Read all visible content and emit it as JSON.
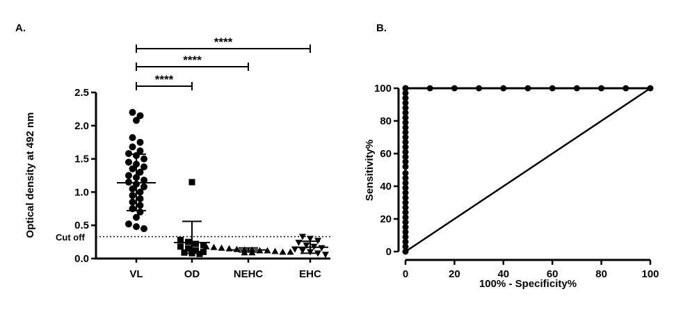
{
  "chart_data": [
    {
      "panel_label": "A.",
      "type": "scatter",
      "ylabel": "Optical density at 492 nm",
      "ylim": [
        0,
        2.5
      ],
      "yticks": [
        "0.0",
        "0.5",
        "1.0",
        "1.5",
        "2.0",
        "2.5"
      ],
      "categories": [
        "VL",
        "OD",
        "NEHC",
        "EHC"
      ],
      "cutoff": {
        "label": "Cut off",
        "value": 0.33
      },
      "significance": [
        {
          "from": "VL",
          "to": "OD",
          "label": "****"
        },
        {
          "from": "VL",
          "to": "NEHC",
          "label": "****"
        },
        {
          "from": "VL",
          "to": "EHC",
          "label": "****"
        }
      ],
      "groups": [
        {
          "name": "VL",
          "marker": "circle",
          "mean": 1.14,
          "sd_upper": 1.57,
          "sd_lower": 0.72,
          "values": [
            2.2,
            2.15,
            2.08,
            1.82,
            1.75,
            1.68,
            1.62,
            1.58,
            1.55,
            1.5,
            1.45,
            1.42,
            1.38,
            1.35,
            1.3,
            1.25,
            1.22,
            1.18,
            1.15,
            1.12,
            1.08,
            1.05,
            1.0,
            0.95,
            0.9,
            0.85,
            0.8,
            0.75,
            0.7,
            0.62,
            0.52,
            0.48,
            0.45
          ]
        },
        {
          "name": "OD",
          "marker": "square",
          "mean": 0.24,
          "sd_upper": 0.56,
          "sd_lower": 0.08,
          "values": [
            1.15,
            0.28,
            0.25,
            0.22,
            0.2,
            0.18,
            0.15,
            0.12,
            0.1,
            0.09,
            0.08,
            0.07
          ]
        },
        {
          "name": "NEHC",
          "marker": "triangle-up",
          "mean": 0.13,
          "sd_upper": 0.16,
          "sd_lower": 0.1,
          "values": [
            0.18,
            0.17,
            0.16,
            0.15,
            0.14,
            0.13,
            0.13,
            0.12,
            0.12,
            0.11,
            0.1,
            0.1,
            0.09,
            0.09
          ]
        },
        {
          "name": "EHC",
          "marker": "triangle-down",
          "mean": 0.17,
          "sd_upper": 0.26,
          "sd_lower": 0.08,
          "values": [
            0.33,
            0.3,
            0.27,
            0.24,
            0.2,
            0.18,
            0.16,
            0.14,
            0.12,
            0.1,
            0.08,
            0.06
          ]
        }
      ]
    },
    {
      "panel_label": "B.",
      "type": "line",
      "xlabel": "100% - Specificity%",
      "ylabel": "Sensitivity%",
      "xlim": [
        0,
        100
      ],
      "ylim": [
        0,
        100
      ],
      "xticks": [
        "0",
        "20",
        "40",
        "60",
        "80",
        "100"
      ],
      "yticks": [
        "0",
        "20",
        "40",
        "60",
        "80",
        "100"
      ],
      "series": [
        {
          "type": "roc",
          "x": [
            0,
            0,
            0,
            0,
            0,
            0,
            0,
            0,
            0,
            0,
            0,
            0,
            0,
            0,
            0,
            0,
            0,
            0,
            0,
            0,
            0,
            0,
            0,
            0,
            0,
            0,
            0,
            0,
            0,
            0,
            0,
            0,
            0,
            0,
            0,
            10,
            20,
            30,
            40,
            50,
            60,
            70,
            80,
            90,
            100
          ],
          "y": [
            0,
            3,
            6,
            9,
            12,
            15,
            18,
            21,
            24,
            27,
            30,
            33,
            36,
            39,
            42,
            45,
            48,
            52,
            55,
            58,
            61,
            64,
            67,
            70,
            73,
            76,
            79,
            82,
            85,
            88,
            91,
            94,
            97,
            100,
            100,
            100,
            100,
            100,
            100,
            100,
            100,
            100,
            100,
            100,
            100
          ]
        },
        {
          "type": "reference",
          "x": [
            0,
            100
          ],
          "y": [
            0,
            100
          ]
        }
      ]
    }
  ]
}
